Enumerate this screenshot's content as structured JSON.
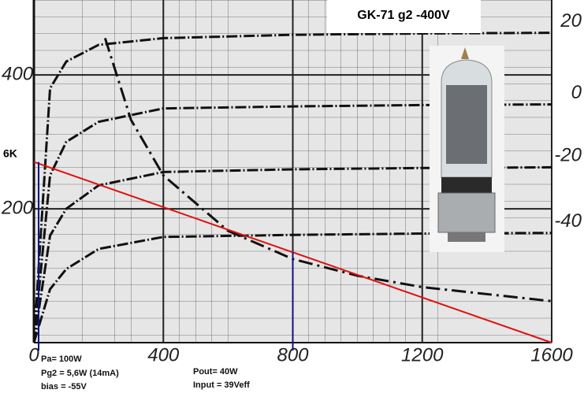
{
  "chart_data": {
    "type": "line",
    "title": "GK-71  g2 -400V",
    "x": [
      0,
      50,
      100,
      200,
      400,
      800,
      1200,
      1600
    ],
    "series": [
      {
        "name": "20",
        "color": "#111111",
        "values": [
          0,
          380,
          420,
          445,
          455,
          460,
          462,
          463
        ]
      },
      {
        "name": "0",
        "color": "#111111",
        "values": [
          0,
          250,
          300,
          330,
          350,
          353,
          355,
          356
        ]
      },
      {
        "name": "-20",
        "color": "#111111",
        "values": [
          0,
          160,
          200,
          235,
          255,
          259,
          261,
          262
        ]
      },
      {
        "name": "-40",
        "color": "#111111",
        "values": [
          0,
          80,
          110,
          140,
          158,
          161,
          163,
          164
        ]
      }
    ],
    "pa_curve": {
      "x": [
        220,
        300,
        400,
        600,
        800,
        1000,
        1200,
        1600
      ],
      "values": [
        455,
        333,
        250,
        167,
        125,
        100,
        83,
        62
      ],
      "color": "#111111"
    },
    "load_line": {
      "label": "6K",
      "x": [
        0,
        1600
      ],
      "values": [
        270,
        0
      ],
      "color": "#e01010"
    },
    "markers": {
      "x": [
        0,
        800
      ],
      "color": "#101080"
    },
    "xlim": [
      0,
      1600
    ],
    "xticks": [
      0,
      400,
      800,
      1200,
      1600
    ],
    "ylim": [
      0,
      512
    ],
    "yticks": [
      200,
      400
    ],
    "grid": true,
    "annotations": [
      "Pa= 100W",
      "Pg2 = 5,6W (14mA)",
      "bias = -55V",
      "Pout= 40W",
      "Input = 39Veff"
    ]
  }
}
